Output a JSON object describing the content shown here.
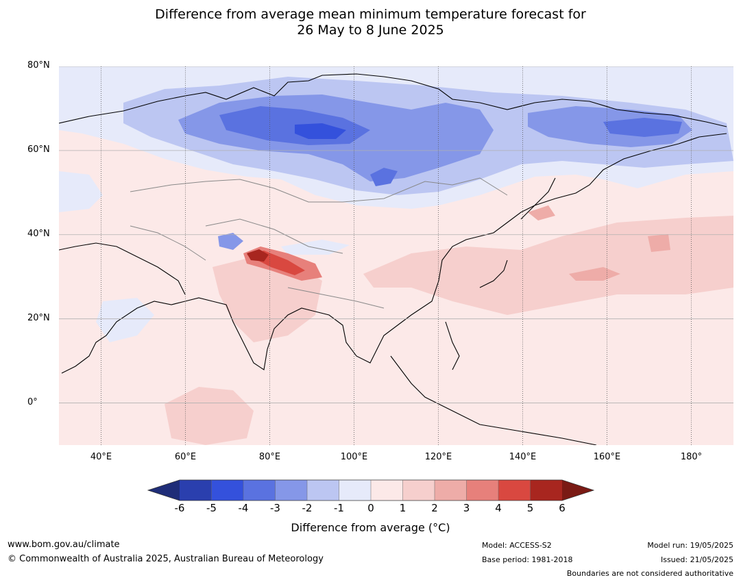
{
  "title": {
    "line1": "Difference from average mean minimum temperature forecast for",
    "line2": "26 May to 8 June 2025"
  },
  "map": {
    "lat_labels": [
      "80°N",
      "60°N",
      "40°N",
      "20°N",
      "0°"
    ],
    "lon_labels": [
      "40°E",
      "60°E",
      "80°E",
      "100°E",
      "120°E",
      "140°E",
      "160°E",
      "180°"
    ],
    "lat_values": [
      80,
      60,
      40,
      20,
      0
    ],
    "lon_values": [
      40,
      60,
      80,
      100,
      120,
      140,
      160,
      180
    ],
    "extent": {
      "lon_min": 30,
      "lon_max": 190,
      "lat_min": -10,
      "lat_max": 80
    }
  },
  "colorbar": {
    "ticks": [
      "-6",
      "-5",
      "-4",
      "-3",
      "-2",
      "-1",
      "0",
      "1",
      "2",
      "3",
      "4",
      "5",
      "6"
    ],
    "colors": [
      "#2a3fae",
      "#3451dc",
      "#5a72e0",
      "#8597e8",
      "#bcc6f2",
      "#e6eafa",
      "#fce9e8",
      "#f6cfcd",
      "#eeaca8",
      "#e7807b",
      "#d94840",
      "#a8261f"
    ],
    "under_color": "#1f2d78",
    "over_color": "#7a1a14",
    "label": "Difference from average (°C)"
  },
  "footer": {
    "website": "www.bom.gov.au/climate",
    "copyright": "© Commonwealth of Australia 2025, Australian Bureau of Meteorology",
    "model": "Model: ACCESS-S2",
    "base_period": "Base period: 1981-2018",
    "model_run": "Model run: 19/05/2025",
    "issued": "Issued: 21/05/2025",
    "disclaimer": "Boundaries are not considered authoritative"
  }
}
